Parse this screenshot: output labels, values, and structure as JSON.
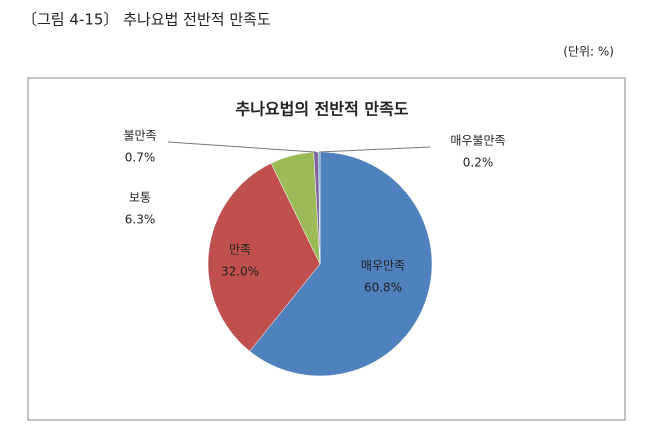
{
  "caption": "〔그림 4-15〕 추나요법 전반적 만족도",
  "unit": "(단위: %)",
  "chart_data": {
    "type": "pie",
    "title": "추나요법의 전반적 만족도",
    "categories": [
      "매우만족",
      "만족",
      "보통",
      "불만족",
      "매우불만족"
    ],
    "values": [
      60.8,
      32.0,
      6.3,
      0.7,
      0.2
    ],
    "value_labels": [
      "60.8%",
      "32.0%",
      "6.3%",
      "0.7%",
      "0.2%"
    ],
    "colors": [
      "#4f81bd",
      "#c0504d",
      "#9bbb59",
      "#8064a2",
      "#4bacc6"
    ]
  }
}
